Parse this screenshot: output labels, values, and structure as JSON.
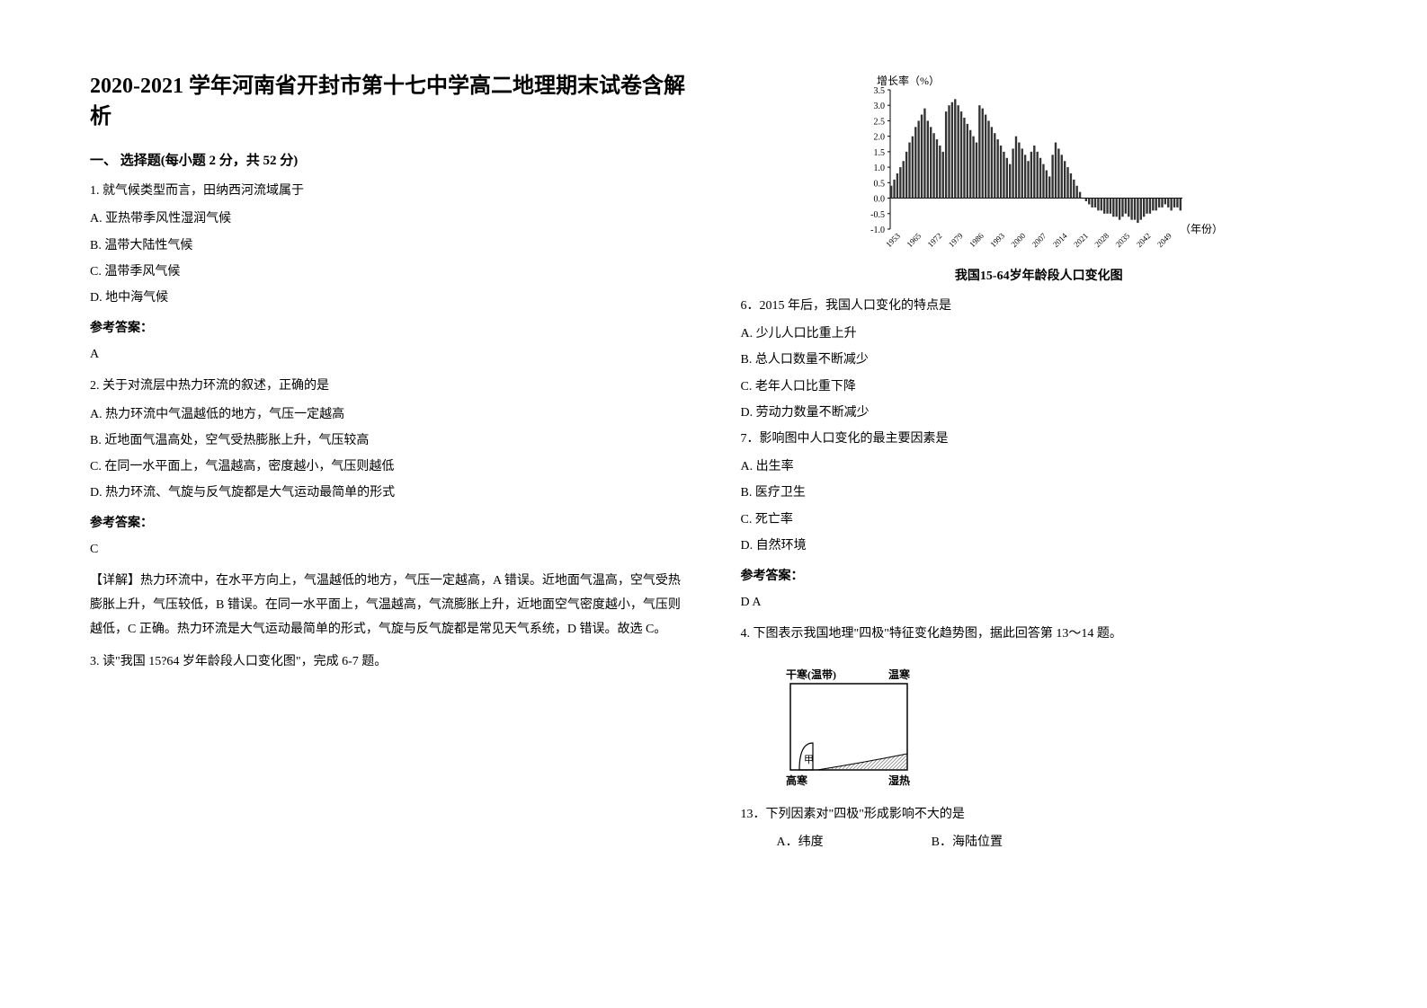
{
  "title": "2020-2021 学年河南省开封市第十七中学高二地理期末试卷含解析",
  "section1": "一、 选择题(每小题 2 分，共 52 分)",
  "q1": {
    "stem": "1. 就气候类型而言，田纳西河流域属于",
    "optA": "A. 亚热带季风性湿润气候",
    "optB": "B. 温带大陆性气候",
    "optC": "C. 温带季风气候",
    "optD": "D. 地中海气候",
    "answerLabel": "参考答案：",
    "answer": "A"
  },
  "q2": {
    "stem": "2. 关于对流层中热力环流的叙述，正确的是",
    "optA": "A.  热力环流中气温越低的地方，气压一定越高",
    "optB": "B.  近地面气温高处，空气受热膨胀上升，气压较高",
    "optC": "C.  在同一水平面上，气温越高，密度越小，气压则越低",
    "optD": "D.  热力环流、气旋与反气旋都是大气运动最简单的形式",
    "answerLabel": "参考答案：",
    "answer": "C",
    "explanation": "【详解】热力环流中，在水平方向上，气温越低的地方，气压一定越高，A 错误。近地面气温高，空气受热膨胀上升，气压较低，B 错误。在同一水平面上，气温越高，气流膨胀上升，近地面空气密度越小，气压则越低，C 正确。热力环流是大气运动最简单的形式，气旋与反气旋都是常见天气系统，D 错误。故选 C。"
  },
  "q3": {
    "stem": "3. 读\"我国 15?64 岁年龄段人口变化图\"，完成 6-7 题。"
  },
  "chart": {
    "title": "我国15-64岁年龄段人口变化图",
    "yLabel": "增长率（%）",
    "xLabel": "（年份）",
    "yMin": -1.0,
    "yMax": 3.5,
    "yTicks": [
      -1.0,
      -0.5,
      0.0,
      0.5,
      1.0,
      1.5,
      2.0,
      2.5,
      3.0,
      3.5
    ],
    "xTicks": [
      "1953",
      "1965",
      "1972",
      "1979",
      "1986",
      "1993",
      "2000",
      "2007",
      "2014",
      "2021",
      "2028",
      "2035",
      "2042",
      "2049"
    ],
    "barColor": "#333333",
    "axisColor": "#000000",
    "background": "#ffffff",
    "data": [
      0.4,
      0.6,
      0.8,
      1.0,
      1.2,
      1.5,
      1.8,
      2.0,
      2.3,
      2.5,
      2.7,
      2.9,
      2.5,
      2.3,
      2.1,
      1.9,
      1.7,
      1.5,
      2.8,
      3.0,
      3.1,
      3.2,
      3.0,
      2.8,
      2.6,
      2.4,
      2.2,
      2.0,
      1.8,
      3.0,
      2.9,
      2.7,
      2.5,
      2.3,
      2.1,
      1.9,
      1.7,
      1.5,
      1.3,
      1.1,
      1.6,
      2.0,
      1.8,
      1.6,
      1.4,
      1.2,
      1.5,
      1.7,
      1.5,
      1.3,
      1.1,
      0.9,
      0.7,
      1.4,
      1.8,
      1.6,
      1.4,
      1.2,
      1.0,
      0.8,
      0.6,
      0.4,
      0.2,
      0.0,
      -0.1,
      -0.2,
      -0.3,
      -0.3,
      -0.4,
      -0.4,
      -0.5,
      -0.5,
      -0.5,
      -0.6,
      -0.6,
      -0.7,
      -0.6,
      -0.5,
      -0.6,
      -0.7,
      -0.7,
      -0.8,
      -0.7,
      -0.6,
      -0.5,
      -0.5,
      -0.4,
      -0.4,
      -0.3,
      -0.3,
      -0.2,
      -0.3,
      -0.4,
      -0.3,
      -0.3,
      -0.4
    ]
  },
  "q6": {
    "stem": "6．2015 年后，我国人口变化的特点是",
    "optA": "A.  少儿人口比重上升",
    "optB": "B.  总人口数量不断减少",
    "optC": "C.  老年人口比重下降",
    "optD": "D.  劳动力数量不断减少"
  },
  "q7": {
    "stem": "7．影响图中人口变化的最主要因素是",
    "optA": "A.  出生率",
    "optB": "B.  医疗卫生",
    "optC": "C.  死亡率",
    "optD": "D.  自然环境",
    "answerLabel": "参考答案：",
    "answer": "D   A"
  },
  "q4": {
    "stem": "4. 下图表示我国地理\"四极\"特征变化趋势图，据此回答第 13～14 题。"
  },
  "diagram": {
    "cornerTL": "干寒(温带)",
    "cornerTR": "温寒",
    "cornerBL": "高寒",
    "cornerBR": "湿热",
    "label": "甲",
    "stroke": "#000000",
    "fill": "none",
    "hatchFill": "#888888"
  },
  "q13": {
    "stem": "13．下列因素对\"四极\"形成影响不大的是",
    "optA": "A．纬度",
    "optB": "B．海陆位置"
  }
}
